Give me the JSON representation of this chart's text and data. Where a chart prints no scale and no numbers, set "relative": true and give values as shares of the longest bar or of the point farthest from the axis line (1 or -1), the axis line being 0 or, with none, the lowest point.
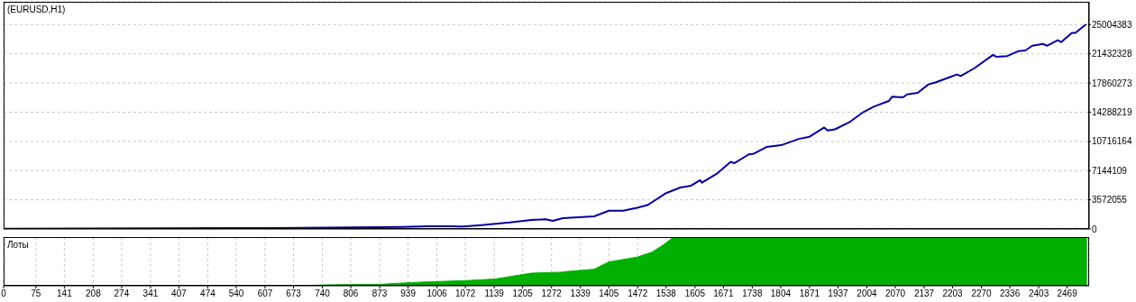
{
  "chart_data": [
    {
      "type": "line",
      "title": "(EURUSD,H1)",
      "xlim": [
        0,
        2520
      ],
      "xticks": [
        0,
        75,
        141,
        208,
        274,
        341,
        407,
        474,
        540,
        607,
        673,
        740,
        806,
        873,
        939,
        1006,
        1072,
        1139,
        1205,
        1272,
        1339,
        1405,
        1472,
        1538,
        1605,
        1671,
        1738,
        1804,
        1871,
        1937,
        2004,
        2070,
        2137,
        2203,
        2270,
        2336,
        2403,
        2469
      ],
      "tick_labels": "y",
      "ylim": [
        0,
        27800000
      ],
      "yticks": [
        0,
        3572055,
        7144109,
        10716164,
        14288219,
        17860273,
        21432328,
        25004383
      ],
      "grid": true,
      "marker": "none",
      "series": [
        {
          "color": "#0000a0",
          "x": [
            0,
            625,
            809,
            925,
            984,
            1042,
            1067,
            1109,
            1175,
            1225,
            1259,
            1275,
            1298,
            1371,
            1405,
            1438,
            1471,
            1496,
            1538,
            1571,
            1596,
            1617,
            1621,
            1655,
            1688,
            1696,
            1730,
            1742,
            1771,
            1805,
            1846,
            1871,
            1905,
            1913,
            1930,
            1963,
            1996,
            2021,
            2055,
            2063,
            2088,
            2097,
            2122,
            2147,
            2163,
            2197,
            2213,
            2222,
            2255,
            2297,
            2305,
            2330,
            2355,
            2372,
            2388,
            2413,
            2422,
            2447,
            2455,
            2480,
            2488,
            2513
          ],
          "values": [
            20000,
            120000,
            200000,
            250000,
            340000,
            340000,
            290000,
            470000,
            790000,
            1100000,
            1190000,
            1000000,
            1330000,
            1550000,
            2230000,
            2230000,
            2590000,
            2950000,
            4390000,
            5070000,
            5300000,
            5970000,
            5660000,
            6740000,
            8230000,
            8050000,
            9130000,
            9220000,
            10030000,
            10250000,
            11020000,
            11290000,
            12420000,
            12060000,
            12190000,
            13050000,
            14310000,
            14990000,
            15660000,
            16200000,
            16110000,
            16470000,
            16650000,
            17690000,
            17920000,
            18590000,
            18900000,
            18720000,
            19720000,
            21300000,
            21070000,
            21160000,
            21750000,
            21840000,
            22420000,
            22650000,
            22420000,
            23100000,
            22870000,
            24000000,
            24000000,
            25040000
          ]
        }
      ]
    },
    {
      "type": "area",
      "title": "Лоты",
      "relative": true,
      "xlim": [
        0,
        2520
      ],
      "xticks": [
        0,
        75,
        141,
        208,
        274,
        341,
        407,
        474,
        540,
        607,
        673,
        740,
        806,
        873,
        939,
        1006,
        1072,
        1139,
        1205,
        1272,
        1339,
        1405,
        1472,
        1538,
        1605,
        1671,
        1738,
        1804,
        1871,
        1937,
        2004,
        2070,
        2137,
        2203,
        2270,
        2336,
        2403,
        2469
      ],
      "tick_labels": "x",
      "grid": "x",
      "series": [
        {
          "color": "#00b000",
          "x": [
            717,
            758,
            875,
            934,
            984,
            1084,
            1142,
            1225,
            1298,
            1304,
            1371,
            1405,
            1471,
            1505,
            1530,
            1555,
            2515
          ],
          "values": [
            0.01,
            0.02,
            0.03,
            0.06,
            0.08,
            0.11,
            0.14,
            0.26,
            0.28,
            0.29,
            0.34,
            0.49,
            0.59,
            0.69,
            0.83,
            1,
            1
          ]
        }
      ]
    }
  ]
}
